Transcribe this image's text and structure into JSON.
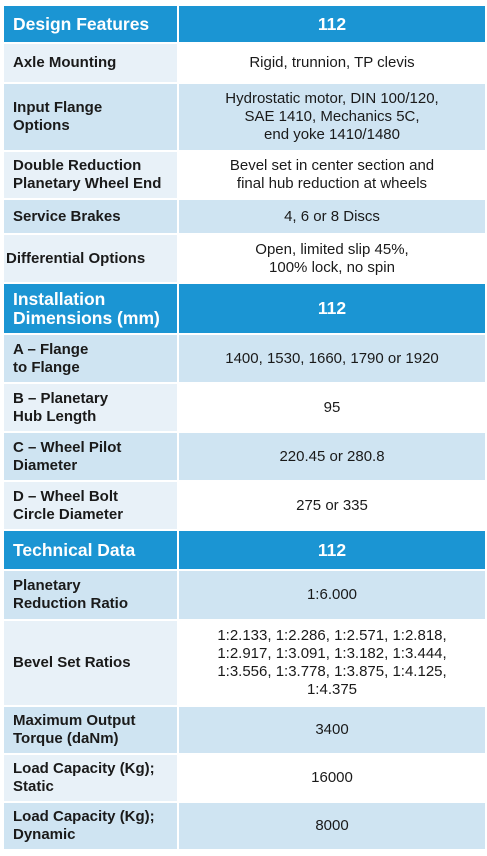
{
  "sections": [
    {
      "header": {
        "label": "Design Features",
        "value": "112"
      },
      "rows": [
        {
          "label": "Axle Mounting",
          "value": "Rigid, trunnion, TP clevis"
        },
        {
          "label": "Input Flange\nOptions",
          "value": "Hydrostatic motor, DIN 100/120,\nSAE 1410, Mechanics 5C,\nend yoke 1410/1480"
        },
        {
          "label": "Double Reduction\nPlanetary Wheel End",
          "value": "Bevel set in center section and\nfinal hub reduction at wheels"
        },
        {
          "label": "Service Brakes",
          "value": "4, 6 or 8 Discs"
        },
        {
          "label": "Differential Options",
          "value": "Open, limited slip 45%,\n100% lock, no spin"
        }
      ]
    },
    {
      "header": {
        "label": "Installation\nDimensions (mm)",
        "value": "112"
      },
      "rows": [
        {
          "label": "A – Flange\n      to Flange",
          "value": "1400, 1530,  1660, 1790 or 1920"
        },
        {
          "label": "B – Planetary\n      Hub Length",
          "value": "95"
        },
        {
          "label": "C – Wheel Pilot\n      Diameter",
          "value": "220.45 or 280.8"
        },
        {
          "label": "D – Wheel Bolt\n      Circle Diameter",
          "value": "275 or 335"
        }
      ]
    },
    {
      "header": {
        "label": "Technical Data",
        "value": "112"
      },
      "rows": [
        {
          "label": "Planetary\nReduction Ratio",
          "value": "1:6.000"
        },
        {
          "label": "Bevel Set Ratios",
          "value": "1:2.133, 1:2.286, 1:2.571, 1:2.818,\n1:2.917, 1:3.091, 1:3.182, 1:3.444,\n1:3.556, 1:3.778, 1:3.875, 1:4.125,\n1:4.375"
        },
        {
          "label": "Maximum Output\nTorque (daNm)",
          "value": "3400"
        },
        {
          "label": "Load Capacity (Kg);\nStatic",
          "value": "16000"
        },
        {
          "label": "Load Capacity (Kg);\nDynamic",
          "value": "8000"
        }
      ]
    }
  ],
  "colors": {
    "header_bg": "#1b95d3",
    "row_alt_bg": "#cfe4f2",
    "label_light_bg": "#e8f1f8"
  }
}
